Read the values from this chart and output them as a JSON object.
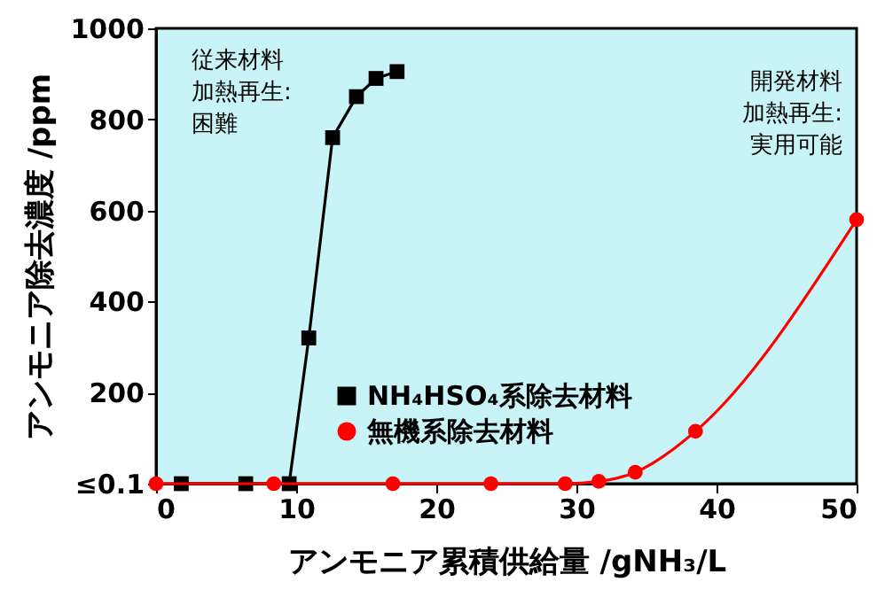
{
  "chart_data": {
    "type": "line",
    "xlabel": "アンモニア累積供給量 /gNH₃/L",
    "ylabel": "アンモニア除去濃度 /ppm",
    "xlim": [
      0,
      50
    ],
    "xticks": [
      0,
      10,
      20,
      30,
      40,
      50
    ],
    "ylim": [
      0,
      1000
    ],
    "yticks": [
      {
        "value": 0,
        "label": "≤0.1"
      },
      200,
      400,
      600,
      800,
      1000
    ],
    "legend": "bottom",
    "series": [
      {
        "name": "NH₄HSO₄系除去材料",
        "color": "#000000",
        "marker": "square",
        "x": [
          1.8,
          6.4,
          9.5,
          10.9,
          12.6,
          14.3,
          15.7,
          17.2
        ],
        "values": [
          0,
          0,
          0,
          320,
          760,
          850,
          890,
          905
        ]
      },
      {
        "name": "無機系除去材料",
        "color": "#ff0000",
        "marker": "circle",
        "x": [
          0,
          8.4,
          16.9,
          23.9,
          29.2,
          31.6,
          34.2,
          38.5,
          50
        ],
        "values": [
          0,
          0,
          0,
          0,
          0,
          5,
          25,
          115,
          580
        ]
      }
    ],
    "annotations": [
      "従来材料",
      "加熱再生:",
      "困難",
      "開発材料",
      "加熱再生:",
      "実用可能"
    ]
  }
}
